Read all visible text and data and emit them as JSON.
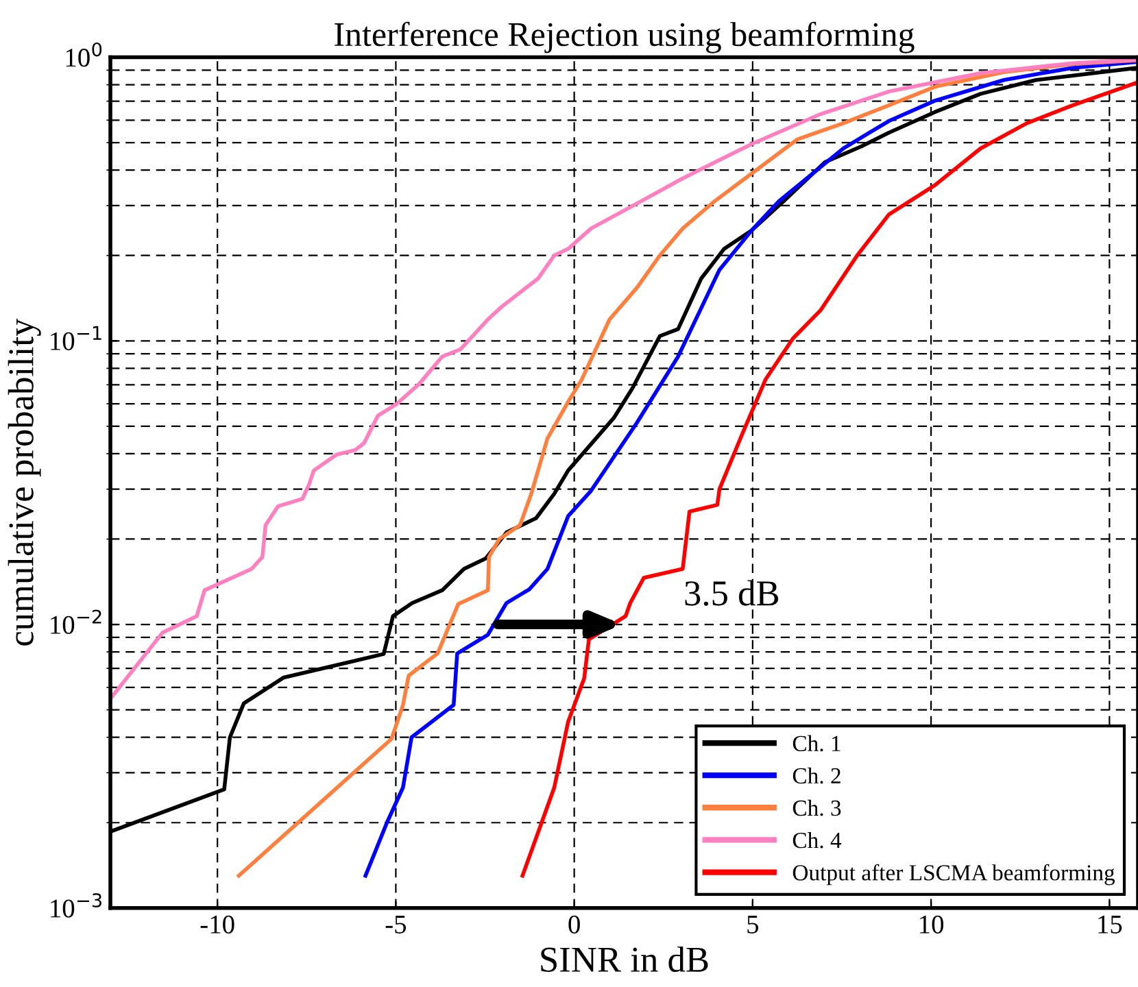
{
  "chart_data": {
    "type": "line",
    "title": "Interference Rejection using beamforming",
    "xlabel": "SINR in dB",
    "ylabel": "cumulative probability",
    "log": "y",
    "grid": true,
    "legend": "bottom right",
    "line_style": "solid",
    "marker": "none",
    "xlim": [
      -13,
      15.8
    ],
    "xticks": [
      -10,
      -5,
      0,
      5,
      10,
      15
    ],
    "ylim": [
      0.001,
      1
    ],
    "yticks": [
      {
        "value": 0.001,
        "label": "10$^{−3}$"
      },
      {
        "value": 0.01,
        "label": "10$^{−2}$"
      },
      {
        "value": 0.1,
        "label": "10$^{−1}$"
      },
      {
        "value": 1,
        "label": "10$^{0}$"
      }
    ],
    "annotations": [
      {
        "text": "3.5 dB",
        "x": 1.46,
        "y": 0.01
      }
    ],
    "series": [
      {
        "name": "Ch. 1",
        "color": "#000000",
        "x": [
          -13,
          -9.81,
          -9.65,
          -9.26,
          -8.14,
          -5.34,
          -5.08,
          -4.54,
          -3.7,
          -3.09,
          -2.48,
          -1.9,
          -1.07,
          -0.56,
          -0.17,
          1.11,
          1.63,
          2.4,
          2.91,
          3.56,
          4.2,
          4.97,
          5.87,
          7.03,
          8.05,
          8.82,
          10.11,
          11.39,
          12.94,
          15.8
        ],
        "values": [
          0.00186,
          0.00262,
          0.004,
          0.00527,
          0.0065,
          0.00787,
          0.0107,
          0.0119,
          0.0132,
          0.0157,
          0.0171,
          0.0211,
          0.0237,
          0.0289,
          0.0349,
          0.0535,
          0.068,
          0.104,
          0.11,
          0.166,
          0.211,
          0.245,
          0.311,
          0.427,
          0.485,
          0.542,
          0.641,
          0.743,
          0.831,
          0.918
        ]
      },
      {
        "name": "Ch. 2",
        "color": "#0000ff",
        "x": [
          -5.85,
          -5.25,
          -4.8,
          -4.56,
          -3.38,
          -3.28,
          -2.42,
          -1.9,
          -1.26,
          -0.75,
          -0.17,
          0.47,
          1.76,
          2.91,
          4.07,
          4.97,
          5.74,
          7.54,
          8.82,
          10.11,
          12.04,
          13.97,
          15.8
        ],
        "values": [
          0.0013,
          0.002,
          0.00266,
          0.004,
          0.0052,
          0.0079,
          0.0092,
          0.0119,
          0.0133,
          0.0157,
          0.0241,
          0.0296,
          0.0515,
          0.088,
          0.178,
          0.245,
          0.311,
          0.477,
          0.596,
          0.703,
          0.831,
          0.918,
          0.964
        ]
      },
      {
        "name": "Ch. 3",
        "color": "#ff7f3f",
        "x": [
          -9.4,
          -5.12,
          -4.8,
          -4.64,
          -3.83,
          -3.25,
          -2.42,
          -2.39,
          -2.1,
          -1.52,
          -1.2,
          -0.75,
          -0.17,
          0.21,
          0.99,
          1.76,
          2.4,
          3.04,
          3.94,
          4.97,
          6.25,
          7.54,
          8.82,
          10.11,
          12.04,
          13.97,
          15.8
        ],
        "values": [
          0.0013,
          0.00395,
          0.0052,
          0.0066,
          0.0079,
          0.0118,
          0.0132,
          0.0173,
          0.02,
          0.0224,
          0.029,
          0.0453,
          0.061,
          0.073,
          0.119,
          0.154,
          0.2,
          0.249,
          0.311,
          0.389,
          0.513,
          0.585,
          0.677,
          0.787,
          0.886,
          0.946,
          0.975
        ]
      },
      {
        "name": "Ch. 4",
        "color": "#ff80c0",
        "x": [
          -13,
          -11.54,
          -10.58,
          -10.36,
          -9.04,
          -8.74,
          -8.65,
          -8.3,
          -7.62,
          -7.43,
          -7.3,
          -6.66,
          -6.14,
          -5.89,
          -5.5,
          -4.99,
          -4.34,
          -3.7,
          -3.19,
          -2.42,
          -2.03,
          -1.01,
          -0.56,
          -0.17,
          0.47,
          1.76,
          3.04,
          4.97,
          6.9,
          8.82,
          11.39,
          13.97,
          15.8
        ],
        "values": [
          0.00547,
          0.00935,
          0.0107,
          0.0132,
          0.0157,
          0.0173,
          0.0224,
          0.0261,
          0.0277,
          0.0312,
          0.0349,
          0.0397,
          0.0412,
          0.0436,
          0.0545,
          0.0597,
          0.0706,
          0.088,
          0.0933,
          0.119,
          0.132,
          0.166,
          0.2,
          0.211,
          0.249,
          0.305,
          0.374,
          0.494,
          0.63,
          0.757,
          0.879,
          0.953,
          0.982
        ]
      },
      {
        "name": "Output after LSCMA beamforming",
        "color": "#ff0000",
        "x": [
          -1.45,
          -0.56,
          -0.17,
          0.28,
          0.41,
          1.44,
          1.57,
          1.95,
          3.04,
          3.23,
          4.01,
          4.07,
          4.71,
          5.36,
          6.13,
          6.9,
          7.93,
          8.82,
          10.11,
          11.39,
          12.68,
          13.97,
          15.8
        ],
        "values": [
          0.0013,
          0.00266,
          0.00454,
          0.00646,
          0.00885,
          0.0107,
          0.0119,
          0.0146,
          0.0157,
          0.025,
          0.0264,
          0.03,
          0.047,
          0.073,
          0.102,
          0.128,
          0.2,
          0.279,
          0.354,
          0.477,
          0.585,
          0.677,
          0.816
        ]
      }
    ]
  }
}
